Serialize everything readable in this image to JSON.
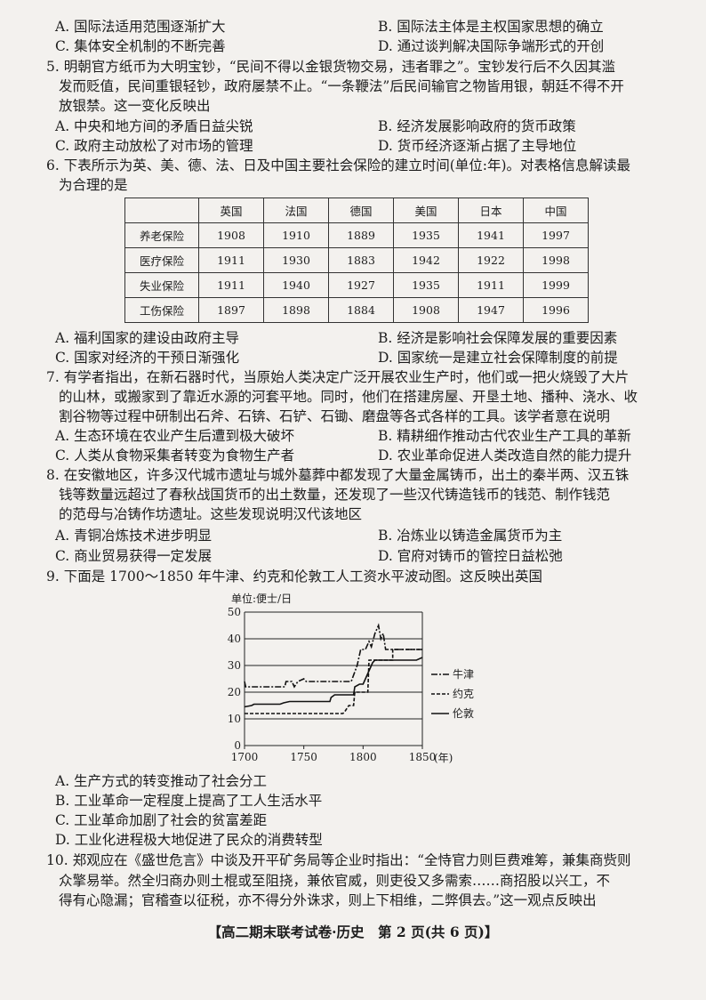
{
  "q4_options": {
    "A": "A. 国际法适用范围逐渐扩大",
    "B": "B. 国际法主体是主权国家思想的确立",
    "C": "C. 集体安全机制的不断完善",
    "D": "D. 通过谈判解决国际争端形式的开创"
  },
  "q5": {
    "lines": [
      "5. 明朝官方纸币为大明宝钞，“民间不得以金银货物交易，违者罪之”。宝钞发行后不久因其滥",
      "发而贬值，民间重银轻钞，政府屡禁不止。“一条鞭法”后民间输官之物皆用银，朝廷不得不开",
      "放银禁。这一变化反映出"
    ],
    "options": {
      "A": "A. 中央和地方间的矛盾日益尖锐",
      "B": "B. 经济发展影响政府的货币政策",
      "C": "C. 政府主动放松了对市场的管理",
      "D": "D. 货币经济逐渐占据了主导地位"
    }
  },
  "q6": {
    "lines": [
      "6. 下表所示为英、美、德、法、日及中国主要社会保险的建立时间(单位:年)。对表格信息解读最",
      "为合理的是"
    ],
    "table": {
      "headers": [
        "",
        "英国",
        "法国",
        "德国",
        "美国",
        "日本",
        "中国"
      ],
      "rows": [
        [
          "养老保险",
          "1908",
          "1910",
          "1889",
          "1935",
          "1941",
          "1997"
        ],
        [
          "医疗保险",
          "1911",
          "1930",
          "1883",
          "1942",
          "1922",
          "1998"
        ],
        [
          "失业保险",
          "1911",
          "1940",
          "1927",
          "1935",
          "1911",
          "1999"
        ],
        [
          "工伤保险",
          "1897",
          "1898",
          "1884",
          "1908",
          "1947",
          "1996"
        ]
      ]
    },
    "options": {
      "A": "A. 福利国家的建设由政府主导",
      "B": "B. 经济是影响社会保障发展的重要因素",
      "C": "C. 国家对经济的干预日渐强化",
      "D": "D. 国家统一是建立社会保障制度的前提"
    }
  },
  "q7": {
    "lines": [
      "7. 有学者指出，在新石器时代，当原始人类决定广泛开展农业生产时，他们或一把火烧毁了大片",
      "的山林，或搬家到了靠近水源的河套平地。同时，他们在搭建房屋、开垦土地、播种、浇水、收",
      "割谷物等过程中研制出石斧、石锛、石铲、石锄、磨盘等各式各样的工具。该学者意在说明"
    ],
    "options": {
      "A": "A. 生态环境在农业产生后遭到极大破坏",
      "B": "B. 精耕细作推动古代农业生产工具的革新",
      "C": "C. 人类从食物采集者转变为食物生产者",
      "D": "D. 农业革命促进人类改造自然的能力提升"
    }
  },
  "q8": {
    "lines": [
      "8. 在安徽地区，许多汉代城市遗址与城外墓葬中都发现了大量金属铸币，出土的秦半两、汉五铢",
      "钱等数量远超过了春秋战国货币的出土数量，还发现了一些汉代铸造钱币的钱范、制作钱范",
      "的范母与冶铸作坊遗址。这些发现说明汉代该地区"
    ],
    "options": {
      "A": "A. 青铜冶炼技术进步明显",
      "B": "B. 冶炼业以铸造金属货币为主",
      "C": "C. 商业贸易获得一定发展",
      "D": "D. 官府对铸币的管控日益松弛"
    }
  },
  "q9": {
    "lines": [
      "9. 下面是 1700～1850 年牛津、约克和伦敦工人工资水平波动图。这反映出英国"
    ],
    "options": {
      "A": "A. 生产方式的转变推动了社会分工",
      "B": "B. 工业革命一定程度上提高了工人生活水平",
      "C": "C. 工业革命加剧了社会的贫富差距",
      "D": "D. 工业化进程极大地促进了民众的消费转型"
    }
  },
  "chart_data": {
    "type": "line",
    "ylabel": "单位:便士/日",
    "xlabel": "(年)",
    "xlim": [
      1700,
      1850
    ],
    "ylim": [
      0,
      50
    ],
    "xticks": [
      "1700",
      "1750",
      "1800",
      "1850"
    ],
    "yticks": [
      "0",
      "10",
      "20",
      "30",
      "40",
      "50"
    ],
    "grid": "horizontal",
    "legend": "right",
    "series": [
      {
        "name": "牛津",
        "style": "dash-dot",
        "points": [
          [
            1700,
            24
          ],
          [
            1701,
            22
          ],
          [
            1734,
            22
          ],
          [
            1735,
            24
          ],
          [
            1740,
            24
          ],
          [
            1742,
            22
          ],
          [
            1745,
            24
          ],
          [
            1750,
            25
          ],
          [
            1752,
            24
          ],
          [
            1790,
            24
          ],
          [
            1795,
            30
          ],
          [
            1798,
            36
          ],
          [
            1802,
            36
          ],
          [
            1805,
            39
          ],
          [
            1807,
            37
          ],
          [
            1810,
            42
          ],
          [
            1813,
            45
          ],
          [
            1815,
            40
          ],
          [
            1817,
            42
          ],
          [
            1819,
            36
          ],
          [
            1850,
            36
          ]
        ]
      },
      {
        "name": "约克",
        "style": "dashed",
        "points": [
          [
            1700,
            12
          ],
          [
            1783,
            12
          ],
          [
            1785,
            13
          ],
          [
            1788,
            15
          ],
          [
            1792,
            15
          ],
          [
            1793,
            20
          ],
          [
            1804,
            20
          ],
          [
            1805,
            32
          ],
          [
            1825,
            32
          ],
          [
            1825,
            36
          ],
          [
            1850,
            36
          ]
        ]
      },
      {
        "name": "伦敦",
        "style": "solid",
        "points": [
          [
            1700,
            14.5
          ],
          [
            1706,
            15
          ],
          [
            1708,
            15.5
          ],
          [
            1730,
            15.5
          ],
          [
            1733,
            16
          ],
          [
            1738,
            16.5
          ],
          [
            1772,
            16.5
          ],
          [
            1773,
            18
          ],
          [
            1776,
            19
          ],
          [
            1792,
            19
          ],
          [
            1793,
            22
          ],
          [
            1797,
            23
          ],
          [
            1800,
            23
          ],
          [
            1802,
            25
          ],
          [
            1805,
            28
          ],
          [
            1808,
            31
          ],
          [
            1810,
            32
          ],
          [
            1845,
            32
          ],
          [
            1850,
            33
          ]
        ]
      }
    ]
  },
  "q10": {
    "lines": [
      "10. 郑观应在《盛世危言》中谈及开平矿务局等企业时指出：“全恃官力则巨费难筹，兼集商赀则",
      "众擎易举。然全归商办则土棍或至阻挠，兼依官威，则吏役又多需索……商招股以兴工，不",
      "得有心隐漏；官稽查以征税，亦不得分外诛求，则上下相维，二弊俱去。”这一观点反映出"
    ]
  },
  "footer": "【高二期末联考试卷·历史　第 2 页(共 6 页)】"
}
